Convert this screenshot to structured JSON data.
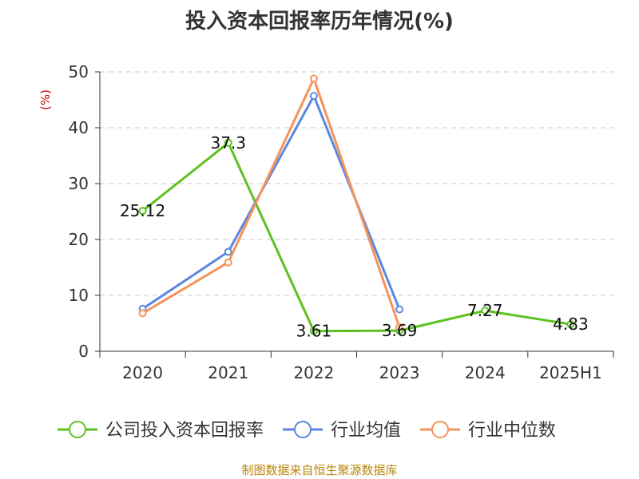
{
  "chart_data": {
    "type": "line",
    "title": "投入资本回报率历年情况(%)",
    "ylabel": "(%)",
    "xlabel": "",
    "categories": [
      "2020",
      "2021",
      "2022",
      "2023",
      "2024",
      "2025H1"
    ],
    "ylim": [
      0,
      50
    ],
    "yticks": [
      0,
      10,
      20,
      30,
      40,
      50
    ],
    "grid": true,
    "legend_position": "bottom",
    "series": [
      {
        "name": "公司投入资本回报率",
        "color": "#5cc21f",
        "values": [
          25.12,
          37.3,
          3.61,
          3.69,
          7.27,
          4.83
        ],
        "labels": [
          "25.12",
          "37.3",
          "3.61",
          "3.69",
          "7.27",
          "4.83"
        ]
      },
      {
        "name": "行业均值",
        "color": "#5b87e0",
        "values": [
          7.6,
          17.8,
          45.7,
          7.5,
          null,
          null
        ]
      },
      {
        "name": "行业中位数",
        "color": "#f5935a",
        "values": [
          6.8,
          15.9,
          48.8,
          4.3,
          null,
          null
        ]
      }
    ]
  },
  "footer": {
    "source": "制图数据来自恒生聚源数据库"
  }
}
